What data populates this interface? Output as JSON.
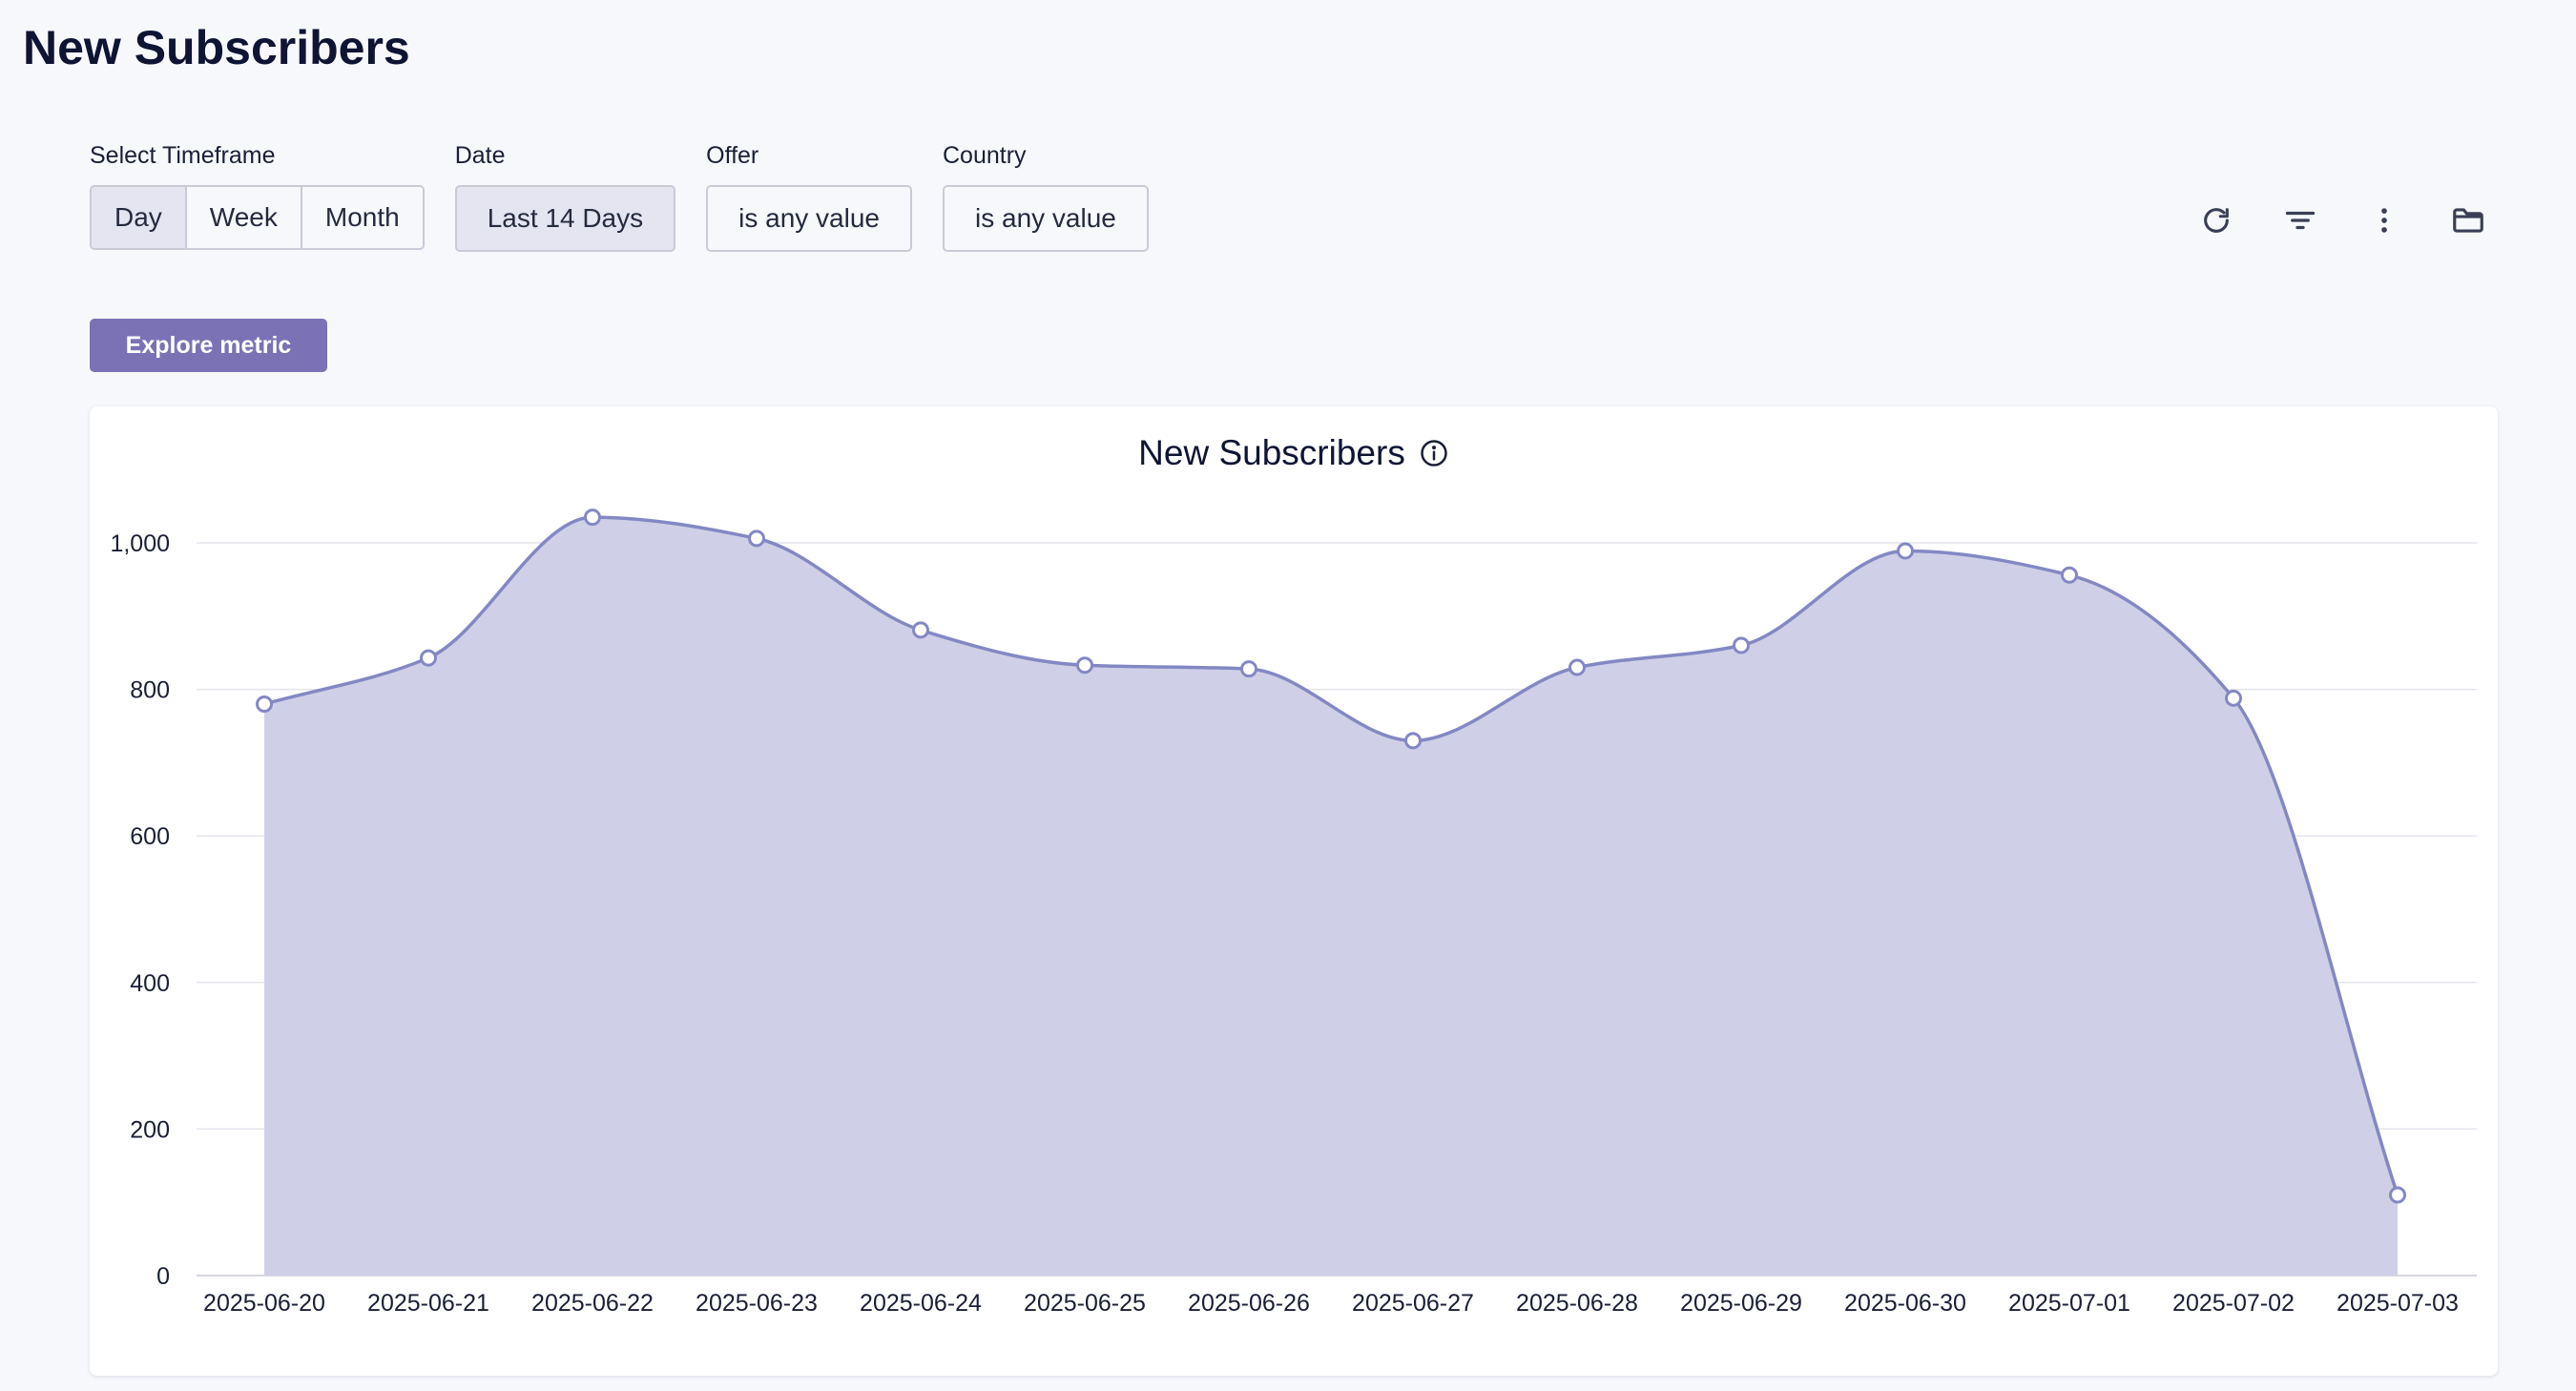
{
  "page": {
    "title": "New Subscribers"
  },
  "filters": {
    "timeframe": {
      "label": "Select Timeframe",
      "options": [
        "Day",
        "Week",
        "Month"
      ],
      "selected": "Day"
    },
    "date": {
      "label": "Date",
      "value": "Last 14 Days"
    },
    "offer": {
      "label": "Offer",
      "value": "is any value"
    },
    "country": {
      "label": "Country",
      "value": "is any value"
    }
  },
  "toolbar": {
    "icons": [
      "refresh-icon",
      "filter-icon",
      "more-vertical-icon",
      "folder-icon"
    ]
  },
  "explore_button": {
    "label": "Explore metric"
  },
  "colors": {
    "accent": "#7b72b6",
    "series_line": "#8388c4",
    "series_fill": "#cfd0e7"
  },
  "chart_data": {
    "type": "area",
    "title": "New Subscribers",
    "xlabel": "",
    "ylabel": "",
    "categories": [
      "2025-06-20",
      "2025-06-21",
      "2025-06-22",
      "2025-06-23",
      "2025-06-24",
      "2025-06-25",
      "2025-06-26",
      "2025-06-27",
      "2025-06-28",
      "2025-06-29",
      "2025-06-30",
      "2025-07-01",
      "2025-07-02",
      "2025-07-03"
    ],
    "series": [
      {
        "values": [
          780,
          843,
          1035,
          1006,
          881,
          833,
          828,
          730,
          830,
          860,
          989,
          956,
          788,
          110
        ]
      }
    ],
    "ylim": [
      0,
      1100
    ],
    "yticks": [
      0,
      200,
      400,
      600,
      800,
      1000
    ],
    "ytick_labels": [
      "0",
      "200",
      "400",
      "600",
      "800",
      "1,000"
    ],
    "grid": true,
    "legend": "none",
    "markers": true
  }
}
